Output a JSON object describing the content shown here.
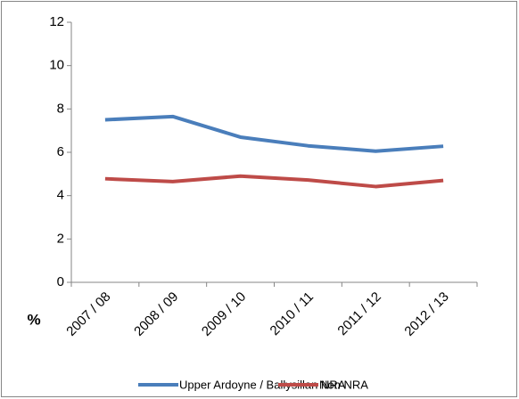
{
  "chart_data": {
    "type": "line",
    "y_label": "%",
    "categories": [
      "2007 / 08",
      "2008 / 09",
      "2009 / 10",
      "2010 / 11",
      "2011 / 12",
      "2012 / 13"
    ],
    "series": [
      {
        "name": "Upper Ardoyne / Ballysillan NRA",
        "color": "#4a7ebb",
        "values": [
          7.5,
          7.65,
          6.7,
          6.3,
          6.05,
          6.28
        ]
      },
      {
        "name": "Non NRA",
        "color": "#be4b48",
        "values": [
          4.78,
          4.65,
          4.9,
          4.72,
          4.42,
          4.7
        ]
      }
    ],
    "ylim": [
      0,
      12
    ],
    "yticks": [
      0,
      2,
      4,
      6,
      8,
      10,
      12
    ],
    "grid": false
  }
}
